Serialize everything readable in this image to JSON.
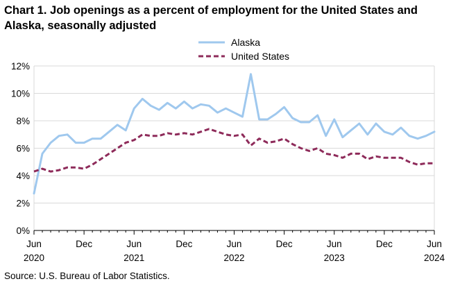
{
  "title": "Chart 1. Job openings as a percent of employment for the United States and Alaska, seasonally adjusted",
  "source": "Source: U.S. Bureau of Labor Statistics.",
  "chart_data": {
    "type": "line",
    "title": "Chart 1. Job openings as a percent of employment for the United States and Alaska, seasonally adjusted",
    "xlabel": "",
    "ylabel": "",
    "x_start": "2020-06",
    "x_end": "2024-06",
    "x_ticks": [
      {
        "month": 0,
        "label": "Jun",
        "year": "2020"
      },
      {
        "month": 6,
        "label": "Dec",
        "year": ""
      },
      {
        "month": 12,
        "label": "Jun",
        "year": "2021"
      },
      {
        "month": 18,
        "label": "Dec",
        "year": ""
      },
      {
        "month": 24,
        "label": "Jun",
        "year": "2022"
      },
      {
        "month": 30,
        "label": "Dec",
        "year": ""
      },
      {
        "month": 36,
        "label": "Jun",
        "year": "2023"
      },
      {
        "month": 42,
        "label": "Dec",
        "year": ""
      },
      {
        "month": 48,
        "label": "Jun",
        "year": "2024"
      }
    ],
    "y_ticks": [
      "0%",
      "2%",
      "4%",
      "6%",
      "8%",
      "10%",
      "12%"
    ],
    "ylim": [
      0,
      12
    ],
    "grid": "horizontal",
    "legend": "top-center",
    "series": [
      {
        "name": "Alaska",
        "color": "#9fc8ee",
        "style": "solid",
        "x": [
          "2020-06",
          "2020-07",
          "2020-08",
          "2020-09",
          "2020-10",
          "2020-11",
          "2020-12",
          "2021-01",
          "2021-02",
          "2021-03",
          "2021-04",
          "2021-05",
          "2021-06",
          "2021-07",
          "2021-08",
          "2021-09",
          "2021-10",
          "2021-11",
          "2021-12",
          "2021-01",
          "2022-02",
          "2022-03",
          "2022-04",
          "2022-05",
          "2022-06",
          "2022-07",
          "2022-08",
          "2022-09",
          "2022-10",
          "2022-11",
          "2022-12",
          "2023-01",
          "2023-02",
          "2023-03",
          "2023-04",
          "2023-05",
          "2023-06",
          "2023-07",
          "2023-08",
          "2023-09",
          "2023-10",
          "2023-11",
          "2023-12",
          "2024-01",
          "2024-02",
          "2024-03",
          "2024-04",
          "2024-05",
          "2024-06"
        ],
        "values": [
          2.7,
          5.6,
          6.4,
          6.9,
          7.0,
          6.4,
          6.4,
          6.7,
          6.7,
          7.2,
          7.7,
          7.3,
          8.9,
          9.6,
          9.1,
          8.8,
          9.3,
          8.9,
          9.4,
          8.9,
          9.2,
          9.1,
          8.6,
          8.9,
          8.6,
          8.3,
          11.4,
          8.1,
          8.1,
          8.5,
          9.0,
          8.2,
          7.9,
          7.9,
          8.4,
          6.9,
          8.1,
          6.8,
          7.3,
          7.8,
          7.0,
          7.8,
          7.2,
          7.0,
          7.5,
          6.9,
          6.7,
          6.9,
          7.2
        ]
      },
      {
        "name": "United States",
        "color": "#8e2b5a",
        "style": "dashed",
        "values": [
          4.3,
          4.5,
          4.3,
          4.4,
          4.6,
          4.6,
          4.5,
          4.8,
          5.2,
          5.6,
          6.0,
          6.4,
          6.6,
          7.0,
          6.9,
          6.9,
          7.1,
          7.0,
          7.1,
          7.0,
          7.2,
          7.4,
          7.2,
          7.0,
          6.9,
          7.0,
          6.2,
          6.7,
          6.4,
          6.5,
          6.7,
          6.3,
          6.0,
          5.8,
          6.0,
          5.6,
          5.5,
          5.3,
          5.6,
          5.6,
          5.2,
          5.4,
          5.3,
          5.3,
          5.3,
          5.0,
          4.8,
          4.9,
          4.9
        ]
      }
    ]
  }
}
